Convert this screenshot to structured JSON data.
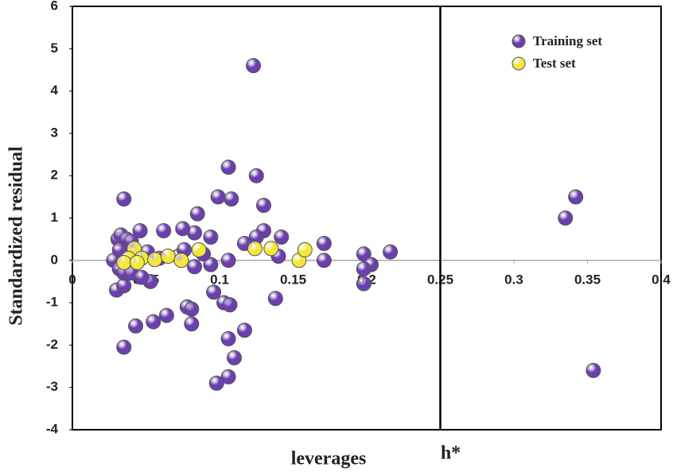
{
  "chart_data": {
    "type": "scatter",
    "x_label": "leverages",
    "y_label": "Standardized residual",
    "xlim": [
      0,
      0.4
    ],
    "ylim": [
      -4,
      6
    ],
    "xticks": [
      0,
      0.05,
      0.1,
      0.15,
      0.2,
      0.25,
      0.3,
      0.35,
      0.4
    ],
    "yticks": [
      -4,
      -3,
      -2,
      -1,
      0,
      1,
      2,
      3,
      4,
      5,
      6
    ],
    "annotations": [
      {
        "x": 0.25,
        "label": "h*"
      }
    ],
    "legend": "upper right",
    "series": [
      {
        "name": "Training  set",
        "color": "#6b3fae",
        "x": [
          0.123,
          0.106,
          0.125,
          0.099,
          0.108,
          0.13,
          0.035,
          0.085,
          0.342,
          0.335,
          0.354,
          0.171,
          0.142,
          0.13,
          0.125,
          0.117,
          0.094,
          0.083,
          0.075,
          0.062,
          0.046,
          0.198,
          0.216,
          0.203,
          0.198,
          0.198,
          0.171,
          0.14,
          0.106,
          0.094,
          0.083,
          0.03,
          0.035,
          0.053,
          0.096,
          0.138,
          0.103,
          0.107,
          0.078,
          0.081,
          0.081,
          0.064,
          0.055,
          0.043,
          0.117,
          0.106,
          0.035,
          0.11,
          0.106,
          0.098,
          0.028,
          0.031,
          0.033,
          0.037,
          0.04,
          0.032,
          0.032,
          0.035,
          0.04,
          0.047,
          0.051,
          0.059,
          0.072,
          0.076,
          0.089
        ],
        "values": [
          4.6,
          2.2,
          2.0,
          1.5,
          1.45,
          1.3,
          1.45,
          1.1,
          1.5,
          1.0,
          -2.6,
          0.4,
          0.55,
          0.7,
          0.55,
          0.4,
          0.55,
          0.65,
          0.75,
          0.7,
          0.7,
          0.15,
          0.2,
          -0.1,
          -0.2,
          -0.55,
          0.0,
          0.1,
          0.0,
          -0.1,
          -0.15,
          -0.7,
          -0.6,
          -0.5,
          -0.75,
          -0.9,
          -1.0,
          -1.05,
          -1.1,
          -1.15,
          -1.5,
          -1.3,
          -1.45,
          -1.55,
          -1.65,
          -1.85,
          -2.05,
          -2.3,
          -2.75,
          -2.9,
          0.0,
          0.5,
          0.6,
          0.5,
          0.45,
          0.25,
          -0.2,
          -0.3,
          -0.3,
          -0.4,
          0.2,
          0.05,
          0.1,
          0.25,
          0.15
        ]
      },
      {
        "name": "Test set",
        "color": "#f2e83a",
        "x": [
          0.037,
          0.042,
          0.038,
          0.047,
          0.056,
          0.065,
          0.074,
          0.086,
          0.124,
          0.135,
          0.154,
          0.158,
          0.035,
          0.044
        ],
        "values": [
          0.0,
          0.28,
          0.05,
          0.05,
          0.02,
          0.1,
          0.0,
          0.25,
          0.28,
          0.28,
          0.0,
          0.25,
          -0.05,
          -0.05
        ]
      }
    ]
  }
}
